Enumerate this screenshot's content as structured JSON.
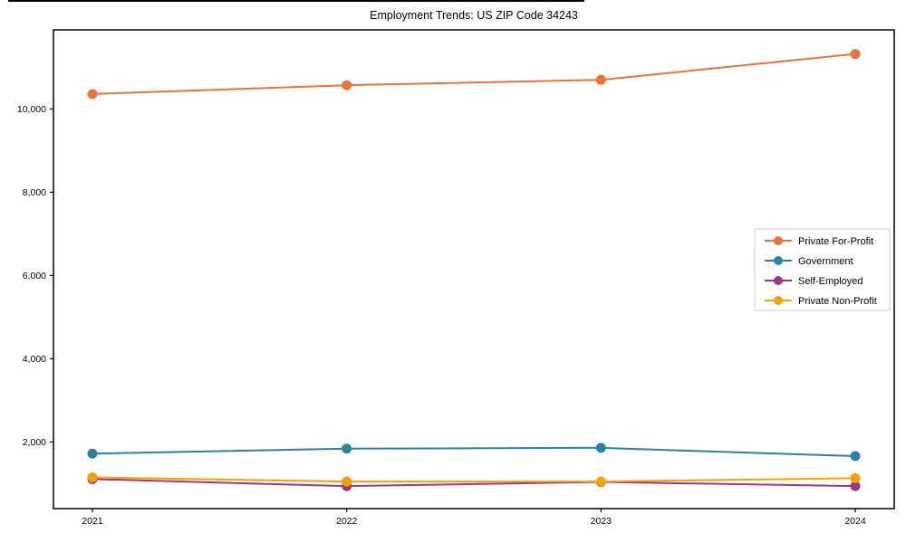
{
  "chart_data": {
    "type": "line",
    "title": "Employment Trends: US ZIP Code 34243",
    "categories": [
      "2021",
      "2022",
      "2023",
      "2024"
    ],
    "series": [
      {
        "name": "Private For-Profit",
        "color": "#e8743b",
        "values": [
          10360,
          10570,
          10700,
          11320
        ]
      },
      {
        "name": "Government",
        "color": "#2e80a1",
        "values": [
          1720,
          1840,
          1860,
          1660
        ]
      },
      {
        "name": "Self-Employed",
        "color": "#a1357e",
        "values": [
          1110,
          940,
          1040,
          940
        ]
      },
      {
        "name": "Private Non-Profit",
        "color": "#f5a005",
        "values": [
          1150,
          1050,
          1050,
          1130
        ]
      }
    ],
    "xlabel": "",
    "ylabel": "",
    "ylim": [
      400,
      11900
    ],
    "yticks": [
      2000,
      4000,
      6000,
      8000,
      10000
    ],
    "grid": false,
    "legend_position": "center-right",
    "frame_color": "#000000",
    "legend_border_color": "#cccccc",
    "background_color": "#ffffff"
  }
}
